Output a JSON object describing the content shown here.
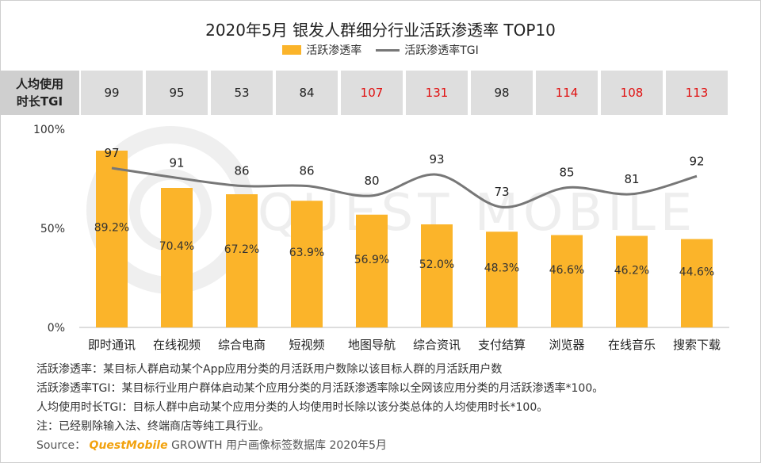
{
  "title": "2020年5月 银发人群细分行业活跃渗透率 TOP10",
  "legend": {
    "bar": "活跃渗透率",
    "line": "活跃渗透率TGI"
  },
  "tgi_header": "人均使用时长TGI",
  "tgi_values": [
    "99",
    "95",
    "53",
    "84",
    "107",
    "131",
    "98",
    "114",
    "108",
    "113"
  ],
  "chart_data": {
    "type": "bar",
    "categories": [
      "即时通讯",
      "在线视频",
      "综合电商",
      "短视频",
      "地图导航",
      "综合资讯",
      "支付结算",
      "浏览器",
      "在线音乐",
      "搜索下载"
    ],
    "series": [
      {
        "name": "活跃渗透率",
        "values": [
          89.2,
          70.4,
          67.2,
          63.9,
          56.9,
          52.0,
          48.3,
          46.6,
          46.2,
          44.6
        ],
        "labels": [
          "89.2%",
          "70.4%",
          "67.2%",
          "63.9%",
          "56.9%",
          "52.0%",
          "48.3%",
          "46.6%",
          "46.2%",
          "44.6%"
        ]
      },
      {
        "name": "活跃渗透率TGI",
        "type": "line",
        "values": [
          97,
          91,
          86,
          86,
          80,
          93,
          73,
          85,
          81,
          92
        ],
        "labels": [
          "97",
          "91",
          "86",
          "86",
          "80",
          "93",
          "73",
          "85",
          "81",
          "92"
        ]
      }
    ],
    "ylim": [
      0,
      100
    ],
    "yticks": [
      "0%",
      "50%",
      "100%"
    ],
    "bar_color": "#fbb42a",
    "line_color": "#777777"
  },
  "watermark": "QUEST MOBILE",
  "footnotes": [
    "活跃渗透率：某目标人群启动某个App应用分类的月活跃用户数除以该目标人群的月活跃用户数",
    "活跃渗透率TGI：某目标行业用户群体启动某个应用分类的月活跃渗透率除以全网该应用分类的月活跃渗透率*100。",
    "人均使用时长TGI：目标人群中启动某个应用分类的人均使用时长除以该分类总体的人均使用时长*100。",
    "注：已经剔除输入法、终端商店等纯工具行业。"
  ],
  "source": {
    "prefix": "Source：",
    "brand": "QuestMobile",
    "text": "GROWTH 用户画像标签数据库 2020年5月"
  }
}
